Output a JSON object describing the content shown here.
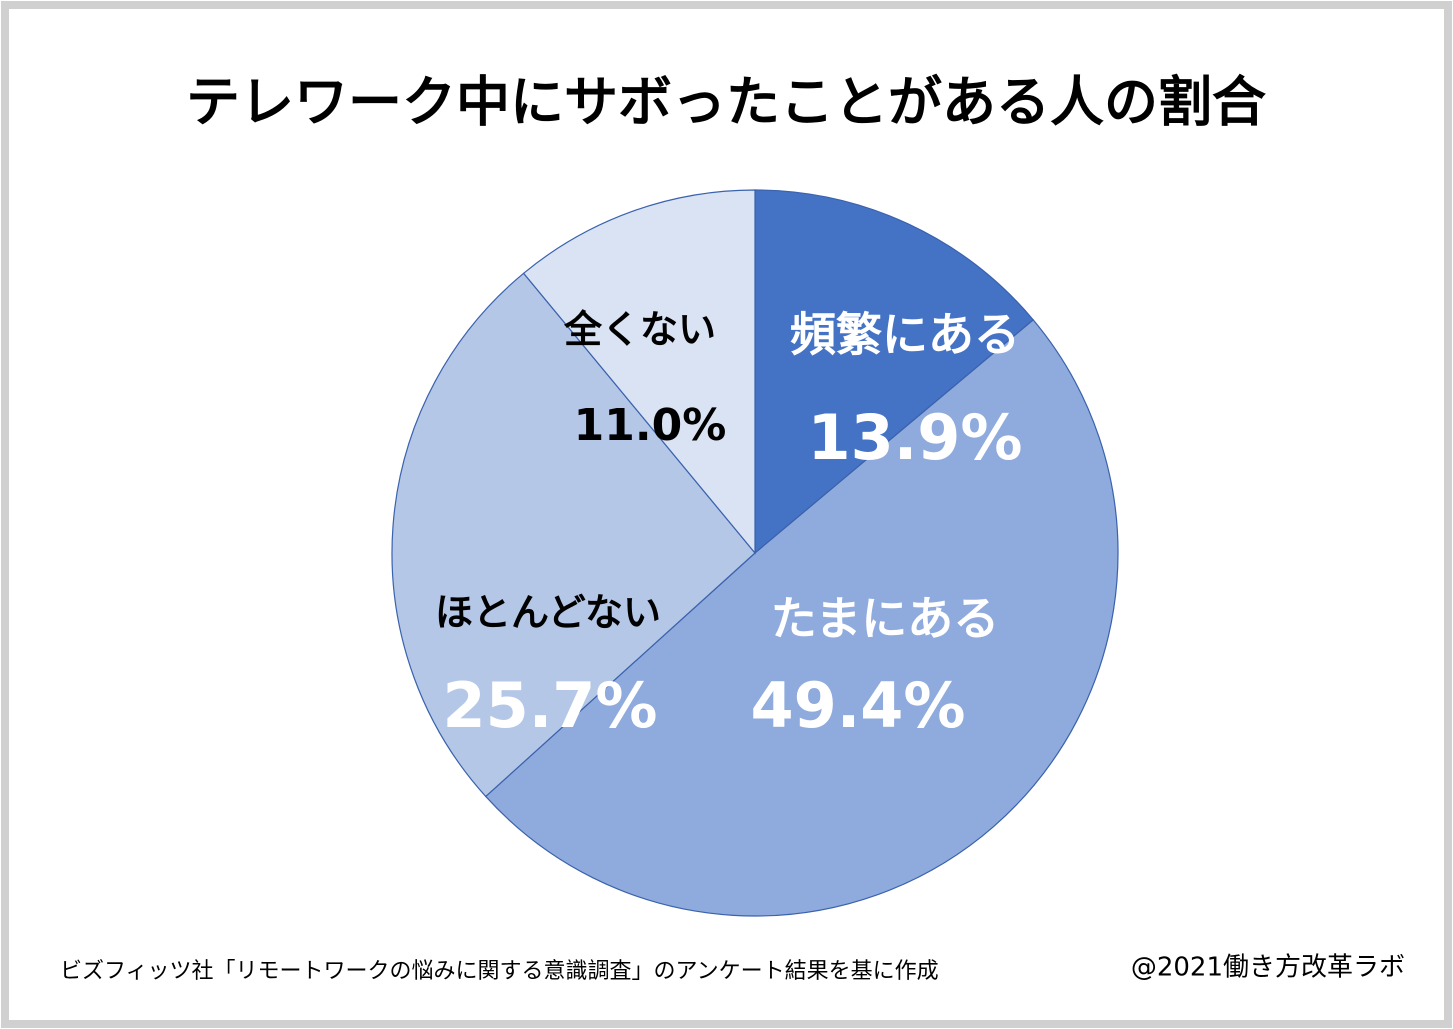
{
  "chart_data": {
    "type": "pie",
    "title": "テレワーク中にサボったことがある人の割合",
    "categories": [
      "頻繁にある",
      "たまにある",
      "ほとんどない",
      "全くない"
    ],
    "values": [
      13.9,
      49.4,
      25.7,
      11.0
    ],
    "value_labels": [
      "13.9%",
      "49.4%",
      "25.7%",
      "11.0%"
    ],
    "colors": [
      "#4472c4",
      "#8faadc",
      "#b4c7e7",
      "#dae3f3"
    ],
    "label_colors": [
      "#ffffff",
      "#ffffff",
      "#000000",
      "#000000"
    ],
    "value_label_colors": [
      "#ffffff",
      "#ffffff",
      "#ffffff",
      "#000000"
    ],
    "source": "ビズフィッツ社「リモートワークの悩みに関する意識調査」のアンケート結果を基に作成",
    "credit": "@2021働き方改革ラボ"
  }
}
